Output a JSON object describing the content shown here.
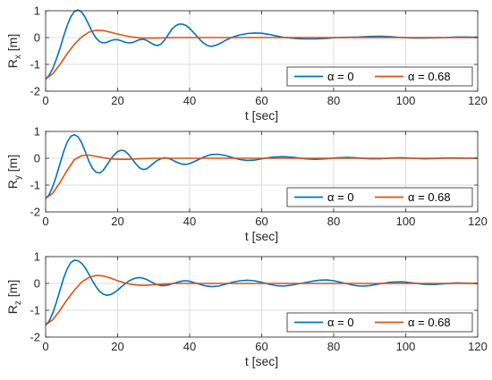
{
  "chart_data": [
    {
      "type": "line",
      "xlabel": "t [sec]",
      "ylabel": "R",
      "ylabel_sub": "x",
      "ylabel_unit": " [m]",
      "xlim": [
        0,
        120
      ],
      "ylim": [
        -2,
        1
      ],
      "xticks": [
        "0",
        "20",
        "40",
        "60",
        "80",
        "100",
        "120"
      ],
      "yticks": [
        "-2",
        "-1",
        "0",
        "1"
      ],
      "grid": true,
      "legend": {
        "placement": "bottom-right",
        "layout": "horizontal"
      },
      "series": [
        {
          "name": "α = 0",
          "color": "#0072BD",
          "x": [
            0,
            1,
            2,
            3,
            4,
            5,
            6,
            7,
            8,
            9,
            10,
            11,
            12,
            13,
            14,
            15,
            16,
            17,
            18,
            19,
            20,
            21,
            22,
            23,
            24,
            25,
            26,
            27,
            28,
            29,
            30,
            31,
            32,
            33,
            34,
            35,
            36,
            37,
            38,
            39,
            40,
            41,
            42,
            43,
            44,
            45,
            46,
            47,
            48,
            49,
            50,
            52,
            54,
            56,
            58,
            60,
            62,
            64,
            66,
            68,
            70,
            72,
            75,
            78,
            81,
            84,
            87,
            90,
            93,
            96,
            99,
            102,
            105,
            108,
            111,
            114,
            117,
            120
          ],
          "y": [
            -1.55,
            -1.4,
            -1.15,
            -0.8,
            -0.4,
            0.05,
            0.45,
            0.78,
            0.97,
            1.03,
            0.95,
            0.75,
            0.48,
            0.2,
            -0.02,
            -0.15,
            -0.2,
            -0.18,
            -0.12,
            -0.08,
            -0.08,
            -0.12,
            -0.17,
            -0.2,
            -0.19,
            -0.14,
            -0.08,
            -0.06,
            -0.1,
            -0.18,
            -0.26,
            -0.3,
            -0.25,
            -0.1,
            0.1,
            0.3,
            0.43,
            0.5,
            0.5,
            0.45,
            0.34,
            0.2,
            0.05,
            -0.1,
            -0.22,
            -0.3,
            -0.33,
            -0.3,
            -0.25,
            -0.18,
            -0.1,
            0.02,
            0.1,
            0.15,
            0.17,
            0.16,
            0.12,
            0.06,
            0.01,
            -0.02,
            -0.04,
            -0.05,
            -0.05,
            -0.03,
            0.0,
            0.01,
            0.02,
            0.04,
            0.05,
            0.03,
            0.0,
            -0.02,
            -0.02,
            -0.01,
            0.0,
            0.02,
            0.02,
            0.01
          ]
        },
        {
          "name": "α = 0.68",
          "color": "#D95319",
          "x": [
            0,
            2,
            4,
            6,
            8,
            10,
            12,
            14,
            16,
            18,
            20,
            22,
            24,
            26,
            28,
            30,
            33,
            36,
            40,
            45,
            50,
            60,
            70,
            80,
            90,
            100,
            110,
            120
          ],
          "y": [
            -1.55,
            -1.35,
            -1.0,
            -0.6,
            -0.25,
            0.02,
            0.2,
            0.27,
            0.26,
            0.2,
            0.13,
            0.07,
            0.02,
            -0.01,
            -0.02,
            -0.02,
            -0.01,
            0.0,
            0.0,
            0.0,
            0.0,
            0.0,
            0.0,
            0.0,
            0.0,
            0.0,
            0.0,
            0.0
          ]
        }
      ]
    },
    {
      "type": "line",
      "xlabel": "t [sec]",
      "ylabel": "R",
      "ylabel_sub": "y",
      "ylabel_unit": " [m]",
      "xlim": [
        0,
        120
      ],
      "ylim": [
        -2,
        1
      ],
      "xticks": [
        "0",
        "20",
        "40",
        "60",
        "80",
        "100",
        "120"
      ],
      "yticks": [
        "-2",
        "-1",
        "0",
        "1"
      ],
      "grid": true,
      "legend": {
        "placement": "bottom-right",
        "layout": "horizontal"
      },
      "series": [
        {
          "name": "α = 0",
          "color": "#0072BD",
          "x": [
            0,
            1,
            2,
            3,
            4,
            5,
            6,
            7,
            8,
            9,
            10,
            11,
            12,
            13,
            14,
            15,
            16,
            17,
            18,
            19,
            20,
            21,
            22,
            23,
            24,
            25,
            26,
            27,
            28,
            29,
            30,
            31,
            32,
            33,
            34,
            35,
            36,
            37,
            38,
            39,
            40,
            42,
            44,
            46,
            48,
            50,
            52,
            54,
            56,
            58,
            60,
            63,
            66,
            69,
            72,
            75,
            78,
            81,
            84,
            87,
            90,
            93,
            96,
            99,
            102,
            105,
            108,
            111,
            114,
            117,
            120
          ],
          "y": [
            -1.5,
            -1.35,
            -1.05,
            -0.65,
            -0.2,
            0.25,
            0.6,
            0.82,
            0.88,
            0.8,
            0.58,
            0.25,
            -0.1,
            -0.38,
            -0.52,
            -0.55,
            -0.45,
            -0.25,
            -0.05,
            0.12,
            0.25,
            0.3,
            0.27,
            0.15,
            -0.02,
            -0.2,
            -0.35,
            -0.42,
            -0.4,
            -0.3,
            -0.18,
            -0.08,
            -0.02,
            0.02,
            0.0,
            -0.05,
            -0.12,
            -0.18,
            -0.22,
            -0.23,
            -0.2,
            -0.08,
            0.05,
            0.14,
            0.15,
            0.1,
            0.02,
            -0.05,
            -0.08,
            -0.07,
            -0.02,
            0.04,
            0.06,
            0.03,
            -0.02,
            -0.04,
            -0.02,
            0.02,
            0.03,
            0.01,
            -0.02,
            -0.02,
            0.01,
            0.02,
            0.0,
            -0.02,
            -0.01,
            0.01,
            0.01,
            0.0,
            0.0
          ]
        },
        {
          "name": "α = 0.68",
          "color": "#D95319",
          "x": [
            0,
            2,
            4,
            6,
            8,
            10,
            12,
            14,
            16,
            18,
            20,
            22,
            24,
            26,
            28,
            30,
            33,
            36,
            40,
            45,
            50,
            60,
            70,
            80,
            90,
            100,
            110,
            120
          ],
          "y": [
            -1.5,
            -1.3,
            -0.9,
            -0.45,
            -0.05,
            0.1,
            0.12,
            0.07,
            0.02,
            -0.02,
            -0.04,
            -0.04,
            -0.03,
            -0.02,
            -0.01,
            0.0,
            0.0,
            0.0,
            0.0,
            0.0,
            0.0,
            0.0,
            0.0,
            0.0,
            0.0,
            0.0,
            0.0,
            0.0
          ]
        }
      ]
    },
    {
      "type": "line",
      "xlabel": "t [sec]",
      "ylabel": "R",
      "ylabel_sub": "z",
      "ylabel_unit": " [m]",
      "xlim": [
        0,
        120
      ],
      "ylim": [
        -2,
        1
      ],
      "xticks": [
        "0",
        "20",
        "40",
        "60",
        "80",
        "100",
        "120"
      ],
      "yticks": [
        "-2",
        "-1",
        "0",
        "1"
      ],
      "grid": true,
      "legend": {
        "placement": "bottom-right",
        "layout": "horizontal"
      },
      "series": [
        {
          "name": "α = 0",
          "color": "#0072BD",
          "x": [
            0,
            1,
            2,
            3,
            4,
            5,
            6,
            7,
            8,
            9,
            10,
            11,
            12,
            13,
            14,
            15,
            16,
            17,
            18,
            19,
            20,
            21,
            22,
            23,
            24,
            25,
            26,
            27,
            28,
            29,
            30,
            31,
            32,
            33,
            34,
            35,
            36,
            37,
            38,
            39,
            40,
            42,
            44,
            46,
            48,
            50,
            52,
            54,
            56,
            58,
            60,
            62,
            64,
            66,
            68,
            70,
            72,
            74,
            76,
            78,
            80,
            82,
            84,
            86,
            88,
            90,
            93,
            96,
            99,
            102,
            105,
            108,
            111,
            114,
            117,
            120
          ],
          "y": [
            -1.55,
            -1.4,
            -1.1,
            -0.7,
            -0.25,
            0.2,
            0.55,
            0.78,
            0.87,
            0.85,
            0.75,
            0.58,
            0.35,
            0.1,
            -0.12,
            -0.3,
            -0.4,
            -0.44,
            -0.42,
            -0.35,
            -0.25,
            -0.13,
            -0.02,
            0.08,
            0.15,
            0.2,
            0.22,
            0.2,
            0.15,
            0.08,
            0.01,
            -0.05,
            -0.08,
            -0.08,
            -0.06,
            -0.02,
            0.02,
            0.06,
            0.09,
            0.1,
            0.08,
            0.0,
            -0.08,
            -0.12,
            -0.1,
            -0.03,
            0.05,
            0.1,
            0.12,
            0.1,
            0.04,
            -0.03,
            -0.08,
            -0.1,
            -0.07,
            -0.02,
            0.03,
            0.08,
            0.12,
            0.13,
            0.1,
            0.04,
            -0.02,
            -0.08,
            -0.1,
            -0.08,
            -0.01,
            0.05,
            0.06,
            0.02,
            -0.03,
            -0.04,
            -0.01,
            0.02,
            0.01,
            0.0
          ]
        },
        {
          "name": "α = 0.68",
          "color": "#D95319",
          "x": [
            0,
            2,
            4,
            6,
            8,
            10,
            12,
            14,
            16,
            18,
            20,
            22,
            24,
            26,
            28,
            30,
            33,
            36,
            40,
            45,
            50,
            60,
            70,
            80,
            90,
            100,
            110,
            120
          ],
          "y": [
            -1.55,
            -1.35,
            -1.0,
            -0.6,
            -0.25,
            0.05,
            0.22,
            0.3,
            0.28,
            0.2,
            0.1,
            0.02,
            -0.04,
            -0.07,
            -0.07,
            -0.05,
            -0.02,
            0.0,
            0.0,
            0.0,
            0.0,
            0.0,
            0.0,
            0.0,
            0.0,
            0.0,
            0.0,
            0.0
          ]
        }
      ]
    }
  ]
}
